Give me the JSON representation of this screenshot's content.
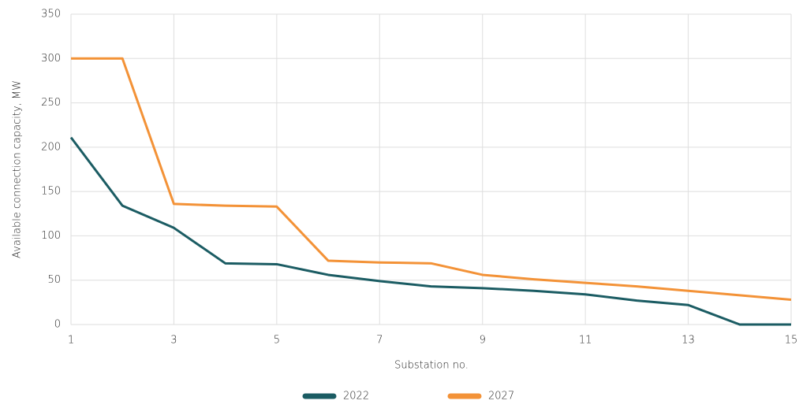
{
  "chart_data": {
    "type": "line",
    "x_label": "Substation no.",
    "y_label": "Available connection capacity, MW",
    "x": [
      1,
      2,
      3,
      4,
      5,
      6,
      7,
      8,
      9,
      10,
      11,
      12,
      13,
      14,
      15
    ],
    "series": [
      {
        "name": "2022",
        "color": "#1b5c63",
        "values": [
          211,
          134,
          109,
          69,
          68,
          56,
          49,
          43,
          41,
          38,
          34,
          27,
          22,
          0,
          0
        ]
      },
      {
        "name": "2027",
        "color": "#f39237",
        "values": [
          300,
          300,
          136,
          134,
          133,
          72,
          70,
          69,
          56,
          51,
          47,
          43,
          38,
          33,
          28
        ]
      }
    ],
    "xlim": [
      1,
      15
    ],
    "xticks": [
      1,
      3,
      5,
      7,
      9,
      11,
      13,
      15
    ],
    "ylim": [
      0,
      350
    ],
    "yticks": [
      0,
      50,
      100,
      150,
      200,
      250,
      300,
      350
    ],
    "grid": true,
    "legend": "bottom"
  }
}
